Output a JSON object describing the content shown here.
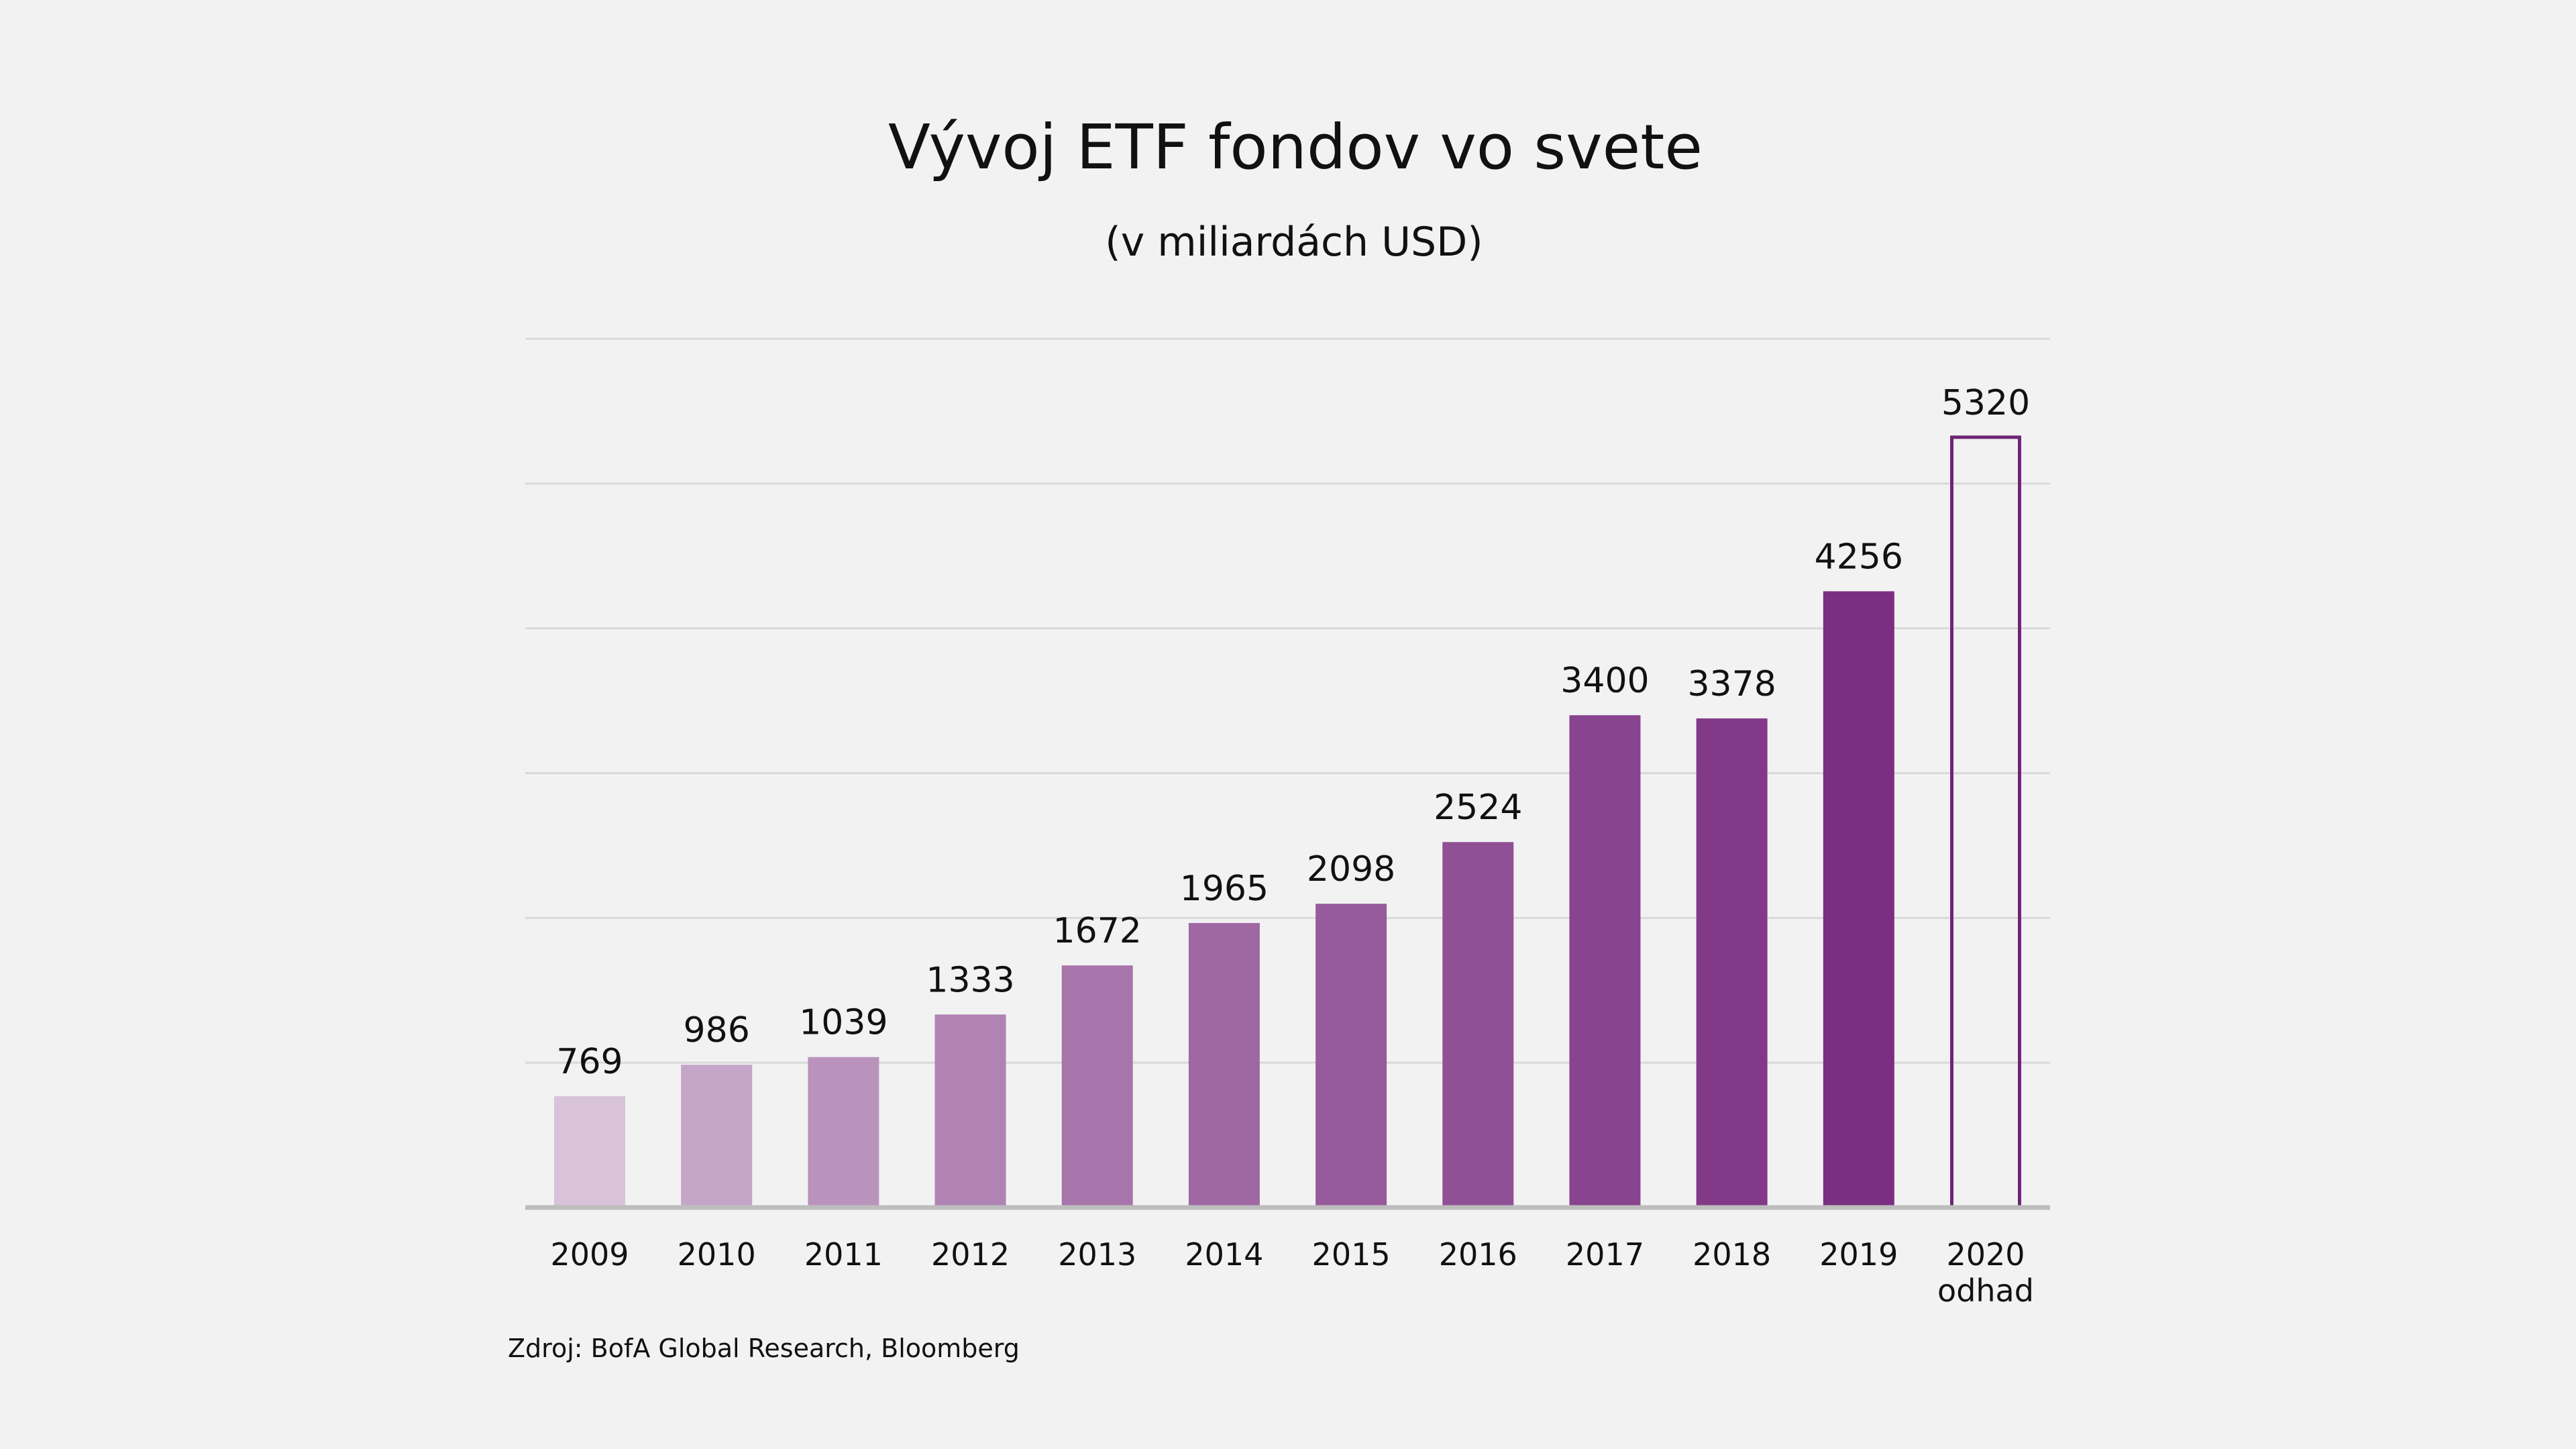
{
  "chart_data": {
    "type": "bar",
    "title": "Vývoj ETF fondov vo svete",
    "subtitle": "(v miliardách USD)",
    "categories": [
      [
        "2009"
      ],
      [
        "2010"
      ],
      [
        "2011"
      ],
      [
        "2012"
      ],
      [
        "2013"
      ],
      [
        "2014"
      ],
      [
        "2015"
      ],
      [
        "2016"
      ],
      [
        "2017"
      ],
      [
        "2018"
      ],
      [
        "2019"
      ],
      [
        "2020",
        "odhad"
      ]
    ],
    "values": [
      769,
      986,
      1039,
      1333,
      1672,
      1965,
      2098,
      2524,
      3400,
      3378,
      4256,
      5320
    ],
    "data_labels": [
      "769",
      "986",
      "1039",
      "1333",
      "1672",
      "1965",
      "2098",
      "2524",
      "3400",
      "3378",
      "4256",
      "5320"
    ],
    "estimate_index": 11,
    "ylim": [
      0,
      6000
    ],
    "yticks": [
      0,
      1000,
      2000,
      3000,
      4000,
      5000,
      6000
    ],
    "ytick_labels_shown": false,
    "grid": true,
    "colors": {
      "bar_start": "#d8c3d9",
      "bar_end": "#7b2f82",
      "estimate_outline": "#6e2676",
      "grid": "#d9d9d9",
      "axis": "#bdbdbd"
    },
    "source": "Zdroj: BofA Global Research, Bloomberg"
  }
}
